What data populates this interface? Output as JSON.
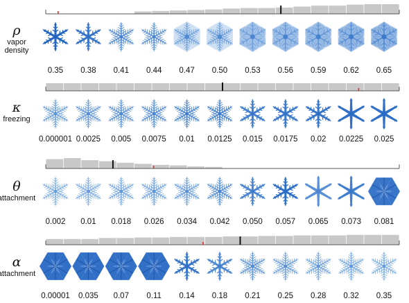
{
  "colors": {
    "bar": "#c8c8c8",
    "baseline": "#555555",
    "black_marker": "#111111",
    "red_marker": "#e0312b",
    "flake_dark": "#1a5fc0",
    "flake_light": "#a9ccee"
  },
  "rows": [
    {
      "symbol": "ρ",
      "name_lines": [
        "vapor",
        "density"
      ],
      "values": [
        "0.35",
        "0.38",
        "0.41",
        "0.44",
        "0.47",
        "0.50",
        "0.53",
        "0.56",
        "0.59",
        "0.62",
        "0.65"
      ],
      "histogram": [
        0,
        0,
        0,
        0,
        0,
        0.25,
        0.3,
        0.35,
        0.4,
        0.45,
        0.55,
        0.6,
        0.6,
        0.65,
        0.75,
        0.85,
        0.85,
        0.95,
        1.0,
        1.0
      ],
      "black_marker": 0.665,
      "red_marker": 0.035,
      "flake_intensity": [
        0.95,
        0.8,
        0.55,
        0.5,
        0.35,
        0.35,
        0.4,
        0.45,
        0.5,
        0.55,
        0.6
      ],
      "flake_style": [
        "dendrite",
        "dendrite",
        "fern",
        "fern",
        "plate-fern",
        "plate-fern",
        "plate",
        "plate",
        "plate",
        "plate",
        "plate"
      ]
    },
    {
      "symbol": "κ",
      "name_lines": [
        "freezing"
      ],
      "values": [
        "0.000001",
        "0.0025",
        "0.005",
        "0.0075",
        "0.01",
        "0.0125",
        "0.015",
        "0.0175",
        "0.02",
        "0.0225",
        "0.025"
      ],
      "histogram": [
        0.85,
        0.85,
        0.85,
        0.85,
        0.85,
        0.85,
        0.85,
        0.85,
        0.85,
        0.85,
        0.85,
        0.85,
        0.85,
        0.85,
        0.85,
        0.85,
        0.85,
        0.85,
        0.85,
        0.85
      ],
      "black_marker": 0.5,
      "red_marker": 0.885,
      "flake_intensity": [
        0.35,
        0.4,
        0.45,
        0.5,
        0.6,
        0.65,
        0.7,
        0.75,
        0.8,
        0.85,
        0.85
      ],
      "flake_style": [
        "fern",
        "fern",
        "fern",
        "fern",
        "fern",
        "fern",
        "dendrite",
        "dendrite",
        "dendrite",
        "needle",
        "needle"
      ]
    },
    {
      "symbol": "θ",
      "name_lines": [
        "attachment"
      ],
      "values": [
        "0.002",
        "0.01",
        "0.018",
        "0.026",
        "0.034",
        "0.042",
        "0.050",
        "0.057",
        "0.065",
        "0.073",
        "0.081"
      ],
      "histogram": [
        0.9,
        1.0,
        0.8,
        0.7,
        0.55,
        0.45,
        0.35,
        0.3,
        0.2,
        0.15,
        0,
        0,
        0,
        0,
        0,
        0,
        0,
        0,
        0,
        0
      ],
      "black_marker": 0.19,
      "red_marker": 0.305,
      "flake_intensity": [
        0.2,
        0.22,
        0.25,
        0.3,
        0.35,
        0.5,
        0.65,
        0.85,
        0.55,
        0.7,
        0.9
      ],
      "flake_style": [
        "fern",
        "fern",
        "fern",
        "fern",
        "fern",
        "fern",
        "dendrite",
        "dendrite",
        "needle",
        "needle",
        "solid"
      ]
    },
    {
      "symbol": "α",
      "name_lines": [
        "attachment"
      ],
      "values": [
        "0.00001",
        "0.035",
        "0.07",
        "0.11",
        "0.14",
        "0.18",
        "0.21",
        "0.25",
        "0.28",
        "0.32",
        "0.35"
      ],
      "histogram": [
        0.55,
        0.55,
        0.55,
        0.65,
        0.65,
        0.7,
        0.7,
        0.75,
        0.75,
        0.75,
        0.8,
        0.8,
        0.85,
        0.85,
        0.9,
        0.9,
        0.9,
        0.95,
        0.95,
        0.95
      ],
      "black_marker": 0.55,
      "red_marker": 0.445,
      "flake_intensity": [
        0.95,
        0.95,
        0.95,
        0.95,
        0.8,
        0.6,
        0.45,
        0.35,
        0.3,
        0.25,
        0.2
      ],
      "flake_style": [
        "solid",
        "solid",
        "solid",
        "solid",
        "dendrite",
        "dendrite",
        "fern",
        "fern",
        "fern",
        "fern",
        "fern"
      ]
    }
  ]
}
